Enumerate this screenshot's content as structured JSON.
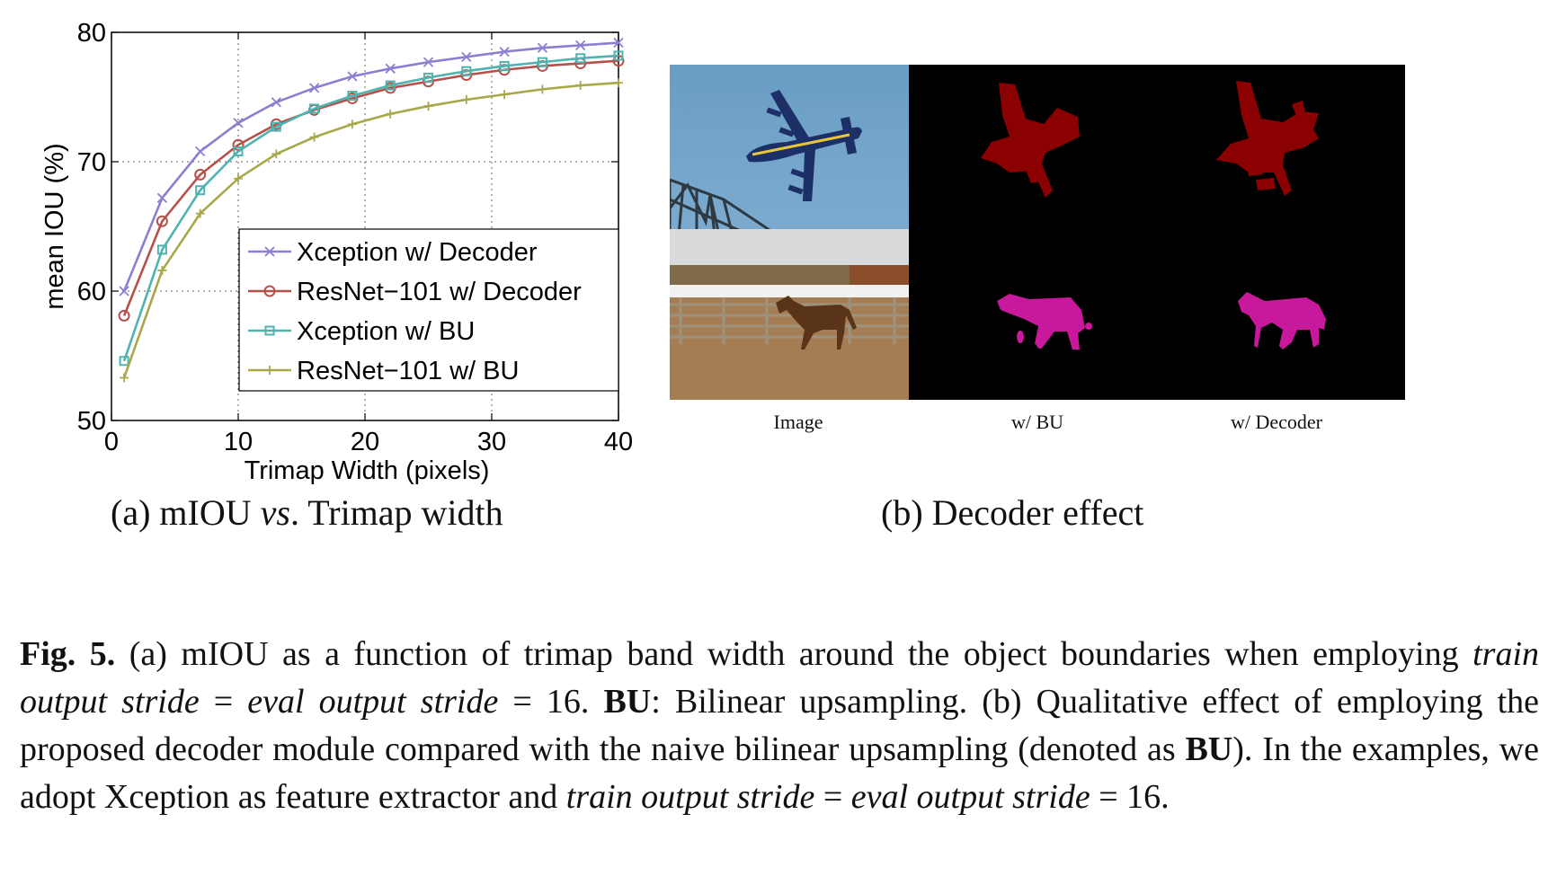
{
  "chart_data": {
    "type": "line",
    "xlabel": "Trimap Width (pixels)",
    "ylabel": "mean IOU (%)",
    "xlim": [
      0,
      40
    ],
    "ylim": [
      50,
      80
    ],
    "xticks": [
      0,
      10,
      20,
      30,
      40
    ],
    "yticks": [
      50,
      60,
      70,
      80
    ],
    "grid": true,
    "legend_position": "bottom-right",
    "x": [
      1,
      4,
      7,
      10,
      13,
      16,
      19,
      22,
      25,
      28,
      31,
      34,
      37,
      40
    ],
    "series": [
      {
        "name": "Xception w/ Decoder",
        "color": "#8a7fd0",
        "marker": "x",
        "values": [
          60.0,
          67.2,
          70.8,
          73.0,
          74.6,
          75.7,
          76.6,
          77.2,
          77.7,
          78.1,
          78.5,
          78.8,
          79.0,
          79.2
        ]
      },
      {
        "name": "ResNet−101 w/ Decoder",
        "color": "#b5504a",
        "marker": "circle",
        "values": [
          58.1,
          65.4,
          69.0,
          71.3,
          72.9,
          74.0,
          74.9,
          75.7,
          76.2,
          76.7,
          77.1,
          77.4,
          77.6,
          77.8
        ]
      },
      {
        "name": "Xception w/ BU",
        "color": "#4fb3b0",
        "marker": "square",
        "values": [
          54.6,
          63.2,
          67.8,
          70.8,
          72.7,
          74.1,
          75.1,
          75.9,
          76.5,
          77.0,
          77.4,
          77.7,
          78.0,
          78.2
        ]
      },
      {
        "name": "ResNet−101 w/ BU",
        "color": "#a7a84a",
        "marker": "plus",
        "values": [
          53.3,
          61.6,
          66.0,
          68.7,
          70.6,
          71.9,
          72.9,
          73.7,
          74.3,
          74.8,
          75.2,
          75.6,
          75.9,
          76.1
        ]
      }
    ]
  },
  "subcaptions": {
    "a_prefix": "(a) mIOU ",
    "a_italic": "vs",
    "a_suffix": ". Trimap width",
    "b": "(b) Decoder effect"
  },
  "image_labels": {
    "col1": "Image",
    "col2": "w/ BU",
    "col3": "w/ Decoder"
  },
  "caption": {
    "fig_label": "Fig. 5.",
    "s1": " (a) mIOU as a function of trimap band width around the object boundaries when employing ",
    "s1_i1": "train output stride",
    "s1_eq": " = ",
    "s1_i2": "eval output stride",
    "s1_val": " = 16. ",
    "bu1": "BU",
    "s2": ": Bilinear upsampling. (b) Qualitative effect of employing the proposed decoder module compared with the naive bilinear upsampling (denoted as ",
    "bu2": "BU",
    "s3": "). In the examples, we adopt Xception as feature extractor and ",
    "s3_i1": "train output stride",
    "s3_eq": " = ",
    "s3_i2": "eval output stride",
    "s3_val": " = 16."
  },
  "colors": {
    "airplane_mask": "#8b0000",
    "horse_mask": "#c8189b",
    "sky": "#6b9fc6",
    "mask_bg": "#000000"
  }
}
